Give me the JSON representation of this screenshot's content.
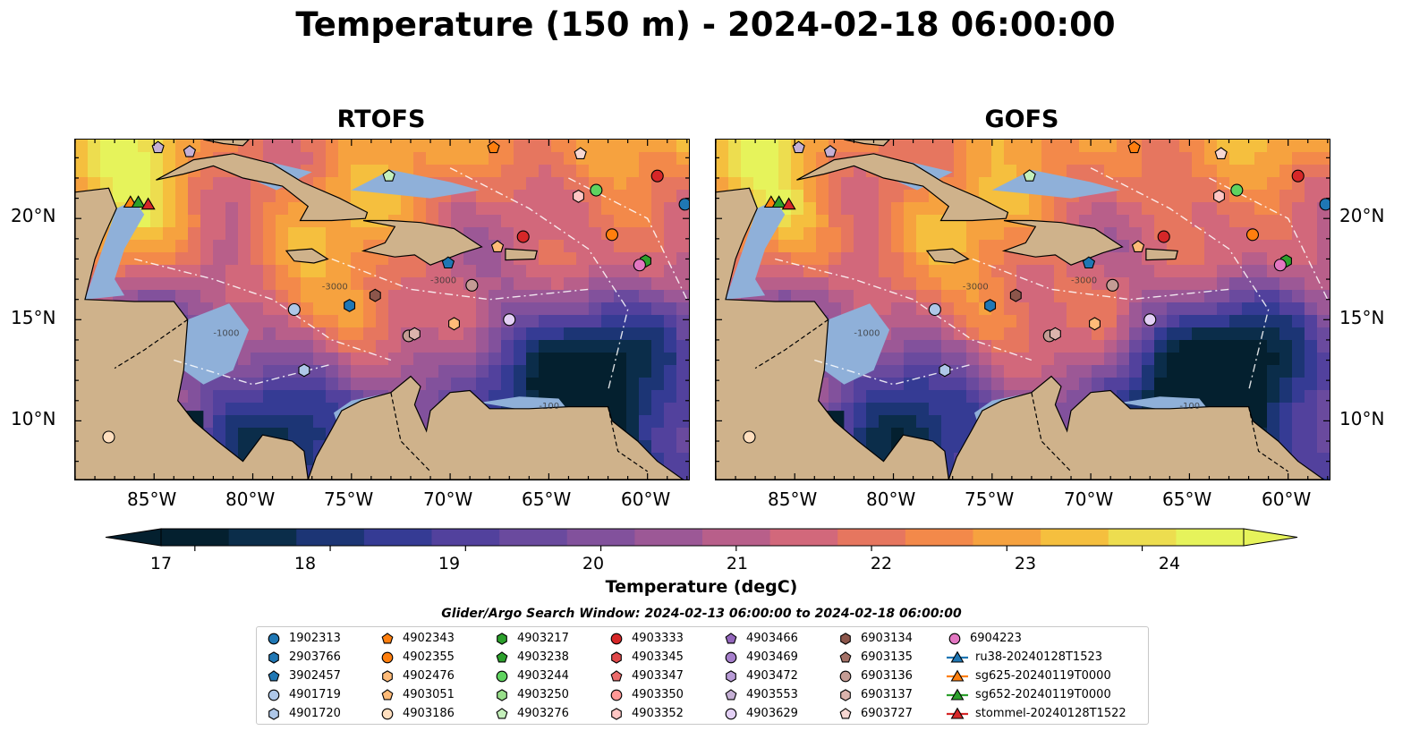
{
  "title": "Temperature (150 m) - 2024-02-18 06:00:00",
  "panels": [
    {
      "title": "RTOFS"
    },
    {
      "title": "GOFS"
    }
  ],
  "map": {
    "lon_ticks": [
      "85°W",
      "80°W",
      "75°W",
      "70°W",
      "65°W",
      "60°W"
    ],
    "lat_ticks": [
      "20°N",
      "15°N",
      "10°N"
    ],
    "bathymetry_labels": [
      "-100",
      "-1000",
      "-3000"
    ]
  },
  "colorbar": {
    "label": "Temperature (degC)",
    "ticks": [
      "17",
      "18",
      "19",
      "20",
      "21",
      "22",
      "23",
      "24"
    ],
    "range": [
      16.75,
      24.75
    ],
    "extend": "both",
    "colormap": "thermal"
  },
  "legend": {
    "title": "Glider/Argo Search Window: 2024-02-13 06:00:00 to 2024-02-18 06:00:00",
    "columns": [
      [
        {
          "label": "1902313",
          "marker": "circle",
          "color": "#1f77b4"
        },
        {
          "label": "2903766",
          "marker": "hexagon",
          "color": "#1f77b4"
        },
        {
          "label": "3902457",
          "marker": "pentagon",
          "color": "#1f77b4"
        },
        {
          "label": "4901719",
          "marker": "circle",
          "color": "#aec7e8"
        },
        {
          "label": "4901720",
          "marker": "hexagon",
          "color": "#aec7e8"
        }
      ],
      [
        {
          "label": "4902343",
          "marker": "pentagon",
          "color": "#ff7f0e"
        },
        {
          "label": "4902355",
          "marker": "circle",
          "color": "#ff7f0e"
        },
        {
          "label": "4902476",
          "marker": "hexagon",
          "color": "#ffbb78"
        },
        {
          "label": "4903051",
          "marker": "pentagon",
          "color": "#ffbb78"
        },
        {
          "label": "4903186",
          "marker": "circle",
          "color": "#ffdfbf"
        }
      ],
      [
        {
          "label": "4903217",
          "marker": "hexagon",
          "color": "#2ca02c"
        },
        {
          "label": "4903238",
          "marker": "pentagon",
          "color": "#2ca02c"
        },
        {
          "label": "4903244",
          "marker": "circle",
          "color": "#5fd35f"
        },
        {
          "label": "4903250",
          "marker": "hexagon",
          "color": "#98df8a"
        },
        {
          "label": "4903276",
          "marker": "pentagon",
          "color": "#c5f0bb"
        }
      ],
      [
        {
          "label": "4903333",
          "marker": "circle",
          "color": "#d62728"
        },
        {
          "label": "4903345",
          "marker": "hexagon",
          "color": "#e0484a"
        },
        {
          "label": "4903347",
          "marker": "pentagon",
          "color": "#eb6b6b"
        },
        {
          "label": "4903350",
          "marker": "circle",
          "color": "#ff9896"
        },
        {
          "label": "4903352",
          "marker": "hexagon",
          "color": "#ffc6c4"
        }
      ],
      [
        {
          "label": "4903466",
          "marker": "pentagon",
          "color": "#9467bd"
        },
        {
          "label": "4903469",
          "marker": "circle",
          "color": "#a67fcb"
        },
        {
          "label": "4903472",
          "marker": "hexagon",
          "color": "#b89bd6"
        },
        {
          "label": "4903553",
          "marker": "pentagon",
          "color": "#c5b0d5"
        },
        {
          "label": "4903629",
          "marker": "circle",
          "color": "#e3d0f5"
        }
      ],
      [
        {
          "label": "6903134",
          "marker": "hexagon",
          "color": "#8c564b"
        },
        {
          "label": "6903135",
          "marker": "pentagon",
          "color": "#a47167"
        },
        {
          "label": "6903136",
          "marker": "circle",
          "color": "#c49c94"
        },
        {
          "label": "6903137",
          "marker": "hexagon",
          "color": "#dbb3ac"
        },
        {
          "label": "6903727",
          "marker": "pentagon",
          "color": "#f7d7d2"
        }
      ],
      [
        {
          "label": "6904223",
          "marker": "circle",
          "color": "#e377c2"
        },
        {
          "label": "ru38-20240128T1523",
          "marker": "triangle-line",
          "color": "#1f77b4"
        },
        {
          "label": "sg625-20240119T0000",
          "marker": "triangle-line",
          "color": "#ff7f0e"
        },
        {
          "label": "sg652-20240119T0000",
          "marker": "triangle-line",
          "color": "#2ca02c"
        },
        {
          "label": "stommel-20240128T1522",
          "marker": "triangle-line",
          "color": "#d62728"
        }
      ]
    ]
  },
  "markers": [
    {
      "lon": -84.8,
      "lat": 23.5,
      "marker": "pentagon",
      "color": "#c5b0d5"
    },
    {
      "lon": -83.2,
      "lat": 23.3,
      "marker": "pentagon",
      "color": "#c5b0d5"
    },
    {
      "lon": -67.8,
      "lat": 23.5,
      "marker": "pentagon",
      "color": "#ff7f0e"
    },
    {
      "lon": -63.4,
      "lat": 23.2,
      "marker": "pentagon",
      "color": "#f7d7d2"
    },
    {
      "lon": -59.5,
      "lat": 22.1,
      "marker": "circle",
      "color": "#d62728"
    },
    {
      "lon": -73.1,
      "lat": 22.1,
      "marker": "pentagon",
      "color": "#c5f0bb"
    },
    {
      "lon": -62.6,
      "lat": 21.4,
      "marker": "circle",
      "color": "#5fd35f"
    },
    {
      "lon": -63.5,
      "lat": 21.1,
      "marker": "hexagon",
      "color": "#ffc6c4"
    },
    {
      "lon": -58.1,
      "lat": 20.7,
      "marker": "circle",
      "color": "#1f77b4"
    },
    {
      "lon": -66.3,
      "lat": 19.1,
      "marker": "circle",
      "color": "#d62728"
    },
    {
      "lon": -61.8,
      "lat": 19.2,
      "marker": "circle",
      "color": "#ff7f0e"
    },
    {
      "lon": -67.6,
      "lat": 18.6,
      "marker": "pentagon",
      "color": "#ffbb78"
    },
    {
      "lon": -70.1,
      "lat": 17.8,
      "marker": "pentagon",
      "color": "#1f77b4"
    },
    {
      "lon": -60.1,
      "lat": 17.9,
      "marker": "hexagon",
      "color": "#2ca02c"
    },
    {
      "lon": -60.4,
      "lat": 17.7,
      "marker": "circle",
      "color": "#e377c2"
    },
    {
      "lon": -68.9,
      "lat": 16.7,
      "marker": "circle",
      "color": "#c49c94"
    },
    {
      "lon": -73.8,
      "lat": 16.2,
      "marker": "hexagon",
      "color": "#8c564b"
    },
    {
      "lon": -75.1,
      "lat": 15.7,
      "marker": "hexagon",
      "color": "#1f77b4"
    },
    {
      "lon": -77.9,
      "lat": 15.5,
      "marker": "circle",
      "color": "#aec7e8"
    },
    {
      "lon": -69.8,
      "lat": 14.8,
      "marker": "hexagon",
      "color": "#ffbb78"
    },
    {
      "lon": -67.0,
      "lat": 15.0,
      "marker": "circle",
      "color": "#e3d0f5"
    },
    {
      "lon": -72.1,
      "lat": 14.2,
      "marker": "circle",
      "color": "#c49c94"
    },
    {
      "lon": -71.8,
      "lat": 14.3,
      "marker": "hexagon",
      "color": "#dbb3ac"
    },
    {
      "lon": -77.4,
      "lat": 12.5,
      "marker": "hexagon",
      "color": "#aec7e8"
    },
    {
      "lon": -87.3,
      "lat": 9.2,
      "marker": "circle",
      "color": "#ffdfbf"
    },
    {
      "lon": -86.2,
      "lat": 20.8,
      "marker": "triangle",
      "color": "#ff7f0e"
    },
    {
      "lon": -85.8,
      "lat": 20.8,
      "marker": "triangle",
      "color": "#2ca02c"
    },
    {
      "lon": -85.3,
      "lat": 20.7,
      "marker": "triangle",
      "color": "#d62728"
    }
  ]
}
